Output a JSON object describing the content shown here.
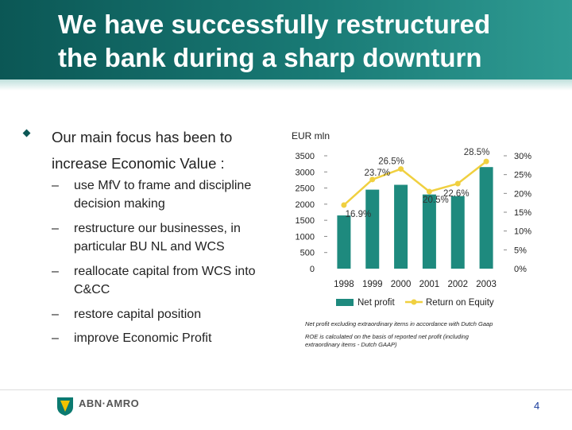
{
  "title": {
    "line1": "We have successfully restructured",
    "line2": "the bank during a sharp downturn"
  },
  "main_bullet": "Our main focus has been to increase Economic Value :",
  "sub_bullets": [
    "use MfV to frame and discipline decision making",
    "restructure our businesses, in particular BU NL and WCS",
    "reallocate capital from WCS into C&CC",
    "restore capital position",
    "improve Economic Profit"
  ],
  "sub_bullet_marker": "–",
  "unit_label": "EUR mln",
  "chart_data": {
    "type": "bar",
    "categories": [
      "1998",
      "1999",
      "2000",
      "2001",
      "2002",
      "2003"
    ],
    "series": [
      {
        "name": "Net profit",
        "type": "bar",
        "axis": "left",
        "values": [
          1650,
          2450,
          2600,
          2300,
          2250,
          3150
        ],
        "color": "#1e8a7e"
      },
      {
        "name": "Return on Equity",
        "type": "line",
        "axis": "right",
        "values": [
          16.9,
          23.7,
          26.5,
          20.5,
          22.6,
          28.5
        ],
        "labels": [
          "16.9%",
          "23.7%",
          "26.5%",
          "20.5%",
          "22.6%",
          "28.5%"
        ],
        "color": "#f0d040"
      }
    ],
    "y_left": {
      "min": 0,
      "max": 3500,
      "ticks": [
        "0",
        "500",
        "1000",
        "1500",
        "2000",
        "2500",
        "3000",
        "3500"
      ]
    },
    "y_right": {
      "min": 0,
      "max": 30,
      "ticks": [
        "0%",
        "5%",
        "10%",
        "15%",
        "20%",
        "25%",
        "30%"
      ]
    },
    "legend_position": "bottom"
  },
  "footnotes": [
    "Net profit excluding extraordinary items in accordance with Dutch Gaap",
    "ROE is calculated on the basis of reported net profit (including extraordinary items - Dutch GAAP)"
  ],
  "logo_text": "ABN·AMRO",
  "page_number": "4",
  "colors": {
    "header": "#0b5755",
    "bar": "#1e8a7e",
    "line": "#f0d040"
  }
}
